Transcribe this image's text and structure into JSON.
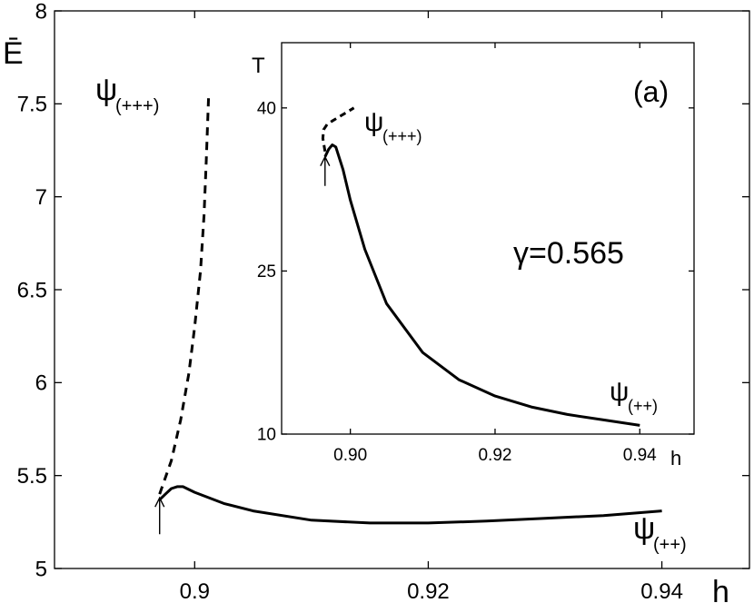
{
  "chart_data": [
    {
      "type": "line",
      "title": "",
      "xlabel": "h",
      "ylabel": "Ē",
      "xlim": [
        0.888,
        0.9475
      ],
      "ylim": [
        5,
        8
      ],
      "xticks": [
        0.9,
        0.92,
        0.94
      ],
      "xtick_labels": [
        "0.9",
        "0.92",
        "0.94"
      ],
      "yticks": [
        5,
        5.5,
        6,
        6.5,
        7,
        7.5,
        8
      ],
      "ytick_labels": [
        "5",
        "5.5",
        "6",
        "6.5",
        "7",
        "7.5",
        "8"
      ],
      "grid": false,
      "series": [
        {
          "name": "ψ(+++)",
          "style": "dashed",
          "x": [
            0.897,
            0.898,
            0.8988,
            0.8995,
            0.9,
            0.9005,
            0.9008,
            0.901,
            0.9012
          ],
          "y": [
            5.4,
            5.58,
            5.8,
            6.05,
            6.3,
            6.6,
            6.9,
            7.2,
            7.55
          ]
        },
        {
          "name": "ψ(++)",
          "style": "solid",
          "x": [
            0.897,
            0.8975,
            0.898,
            0.8985,
            0.899,
            0.9,
            0.9025,
            0.905,
            0.91,
            0.915,
            0.92,
            0.925,
            0.93,
            0.935,
            0.94
          ],
          "y": [
            5.37,
            5.4,
            5.43,
            5.44,
            5.44,
            5.41,
            5.35,
            5.31,
            5.26,
            5.245,
            5.245,
            5.255,
            5.27,
            5.285,
            5.31
          ]
        }
      ],
      "annotations": {
        "label_plus3": "ψ",
        "label_plus3_sub": "(+++)",
        "label_plus2": "ψ",
        "label_plus2_sub": "(++)"
      },
      "arrow_at": {
        "x": 0.897,
        "y": 5.38
      }
    },
    {
      "type": "line",
      "title": "(a)",
      "xlabel": "h",
      "ylabel": "T",
      "xlim": [
        0.8905,
        0.9475
      ],
      "ylim": [
        10,
        46
      ],
      "xticks": [
        0.9,
        0.92,
        0.94
      ],
      "xtick_labels": [
        "0.90",
        "0.92",
        "0.94"
      ],
      "yticks": [
        10,
        25,
        40
      ],
      "ytick_labels": [
        "10",
        "25",
        "40"
      ],
      "grid": false,
      "series": [
        {
          "name": "ψ(+++)",
          "style": "dashed",
          "x": [
            0.8965,
            0.8962,
            0.8963,
            0.8968,
            0.8975,
            0.8985,
            0.8995,
            0.9005
          ],
          "y": [
            36.0,
            37.2,
            38.0,
            38.5,
            38.8,
            39.2,
            39.6,
            40.0
          ]
        },
        {
          "name": "ψ(++)",
          "style": "solid",
          "x": [
            0.8965,
            0.897,
            0.8975,
            0.898,
            0.899,
            0.9,
            0.902,
            0.905,
            0.91,
            0.915,
            0.92,
            0.925,
            0.93,
            0.935,
            0.94
          ],
          "y": [
            35.5,
            36.2,
            36.6,
            36.4,
            34.3,
            31.5,
            27.0,
            22.0,
            17.5,
            15.0,
            13.5,
            12.5,
            11.8,
            11.3,
            10.8
          ]
        }
      ],
      "annotations": {
        "label_plus3": "ψ",
        "label_plus3_sub": "(+++)",
        "label_plus2": "ψ",
        "label_plus2_sub": "(++)",
        "gamma": "γ=0.565"
      },
      "arrow_at": {
        "x": 0.8965,
        "y": 35.5
      }
    }
  ]
}
